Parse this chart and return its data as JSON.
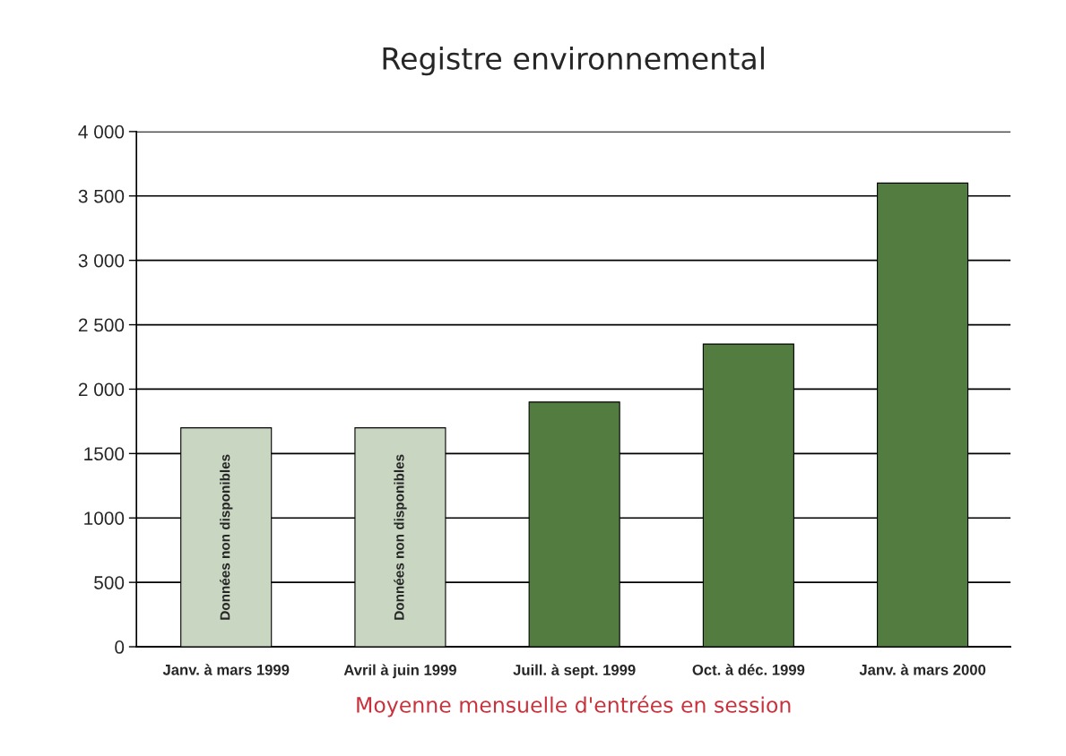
{
  "chart_data": {
    "type": "bar",
    "title": "Registre environnemental",
    "xlabel": "Moyenne mensuelle d'entrées en session",
    "categories": [
      "Janv. à mars 1999",
      "Avril à juin 1999",
      "Juill. à sept. 1999",
      "Oct. à déc. 1999",
      "Janv. à mars 2000"
    ],
    "values": [
      1700,
      1700,
      1900,
      2350,
      3600
    ],
    "colors": [
      "#c8d9bf",
      "#c8d9bf",
      "#4f8636",
      "#4f8636",
      "#4f8636"
    ],
    "ylim": [
      0,
      4000
    ],
    "yticks": [
      0,
      500,
      {
        "value": 1000,
        "label": "1000"
      },
      {
        "value": 1500,
        "label": "1500"
      },
      {
        "value": 2000,
        "label": "2 000"
      },
      {
        "value": 2500,
        "label": "2 500"
      },
      {
        "value": 3000,
        "label": "3 000"
      },
      {
        "value": 3500,
        "label": "3 500"
      },
      {
        "value": 4000,
        "label": "4 000"
      }
    ],
    "grid": "y",
    "legend": false,
    "annotations": [
      "Données non disponibles",
      "Données non disponibles"
    ]
  }
}
